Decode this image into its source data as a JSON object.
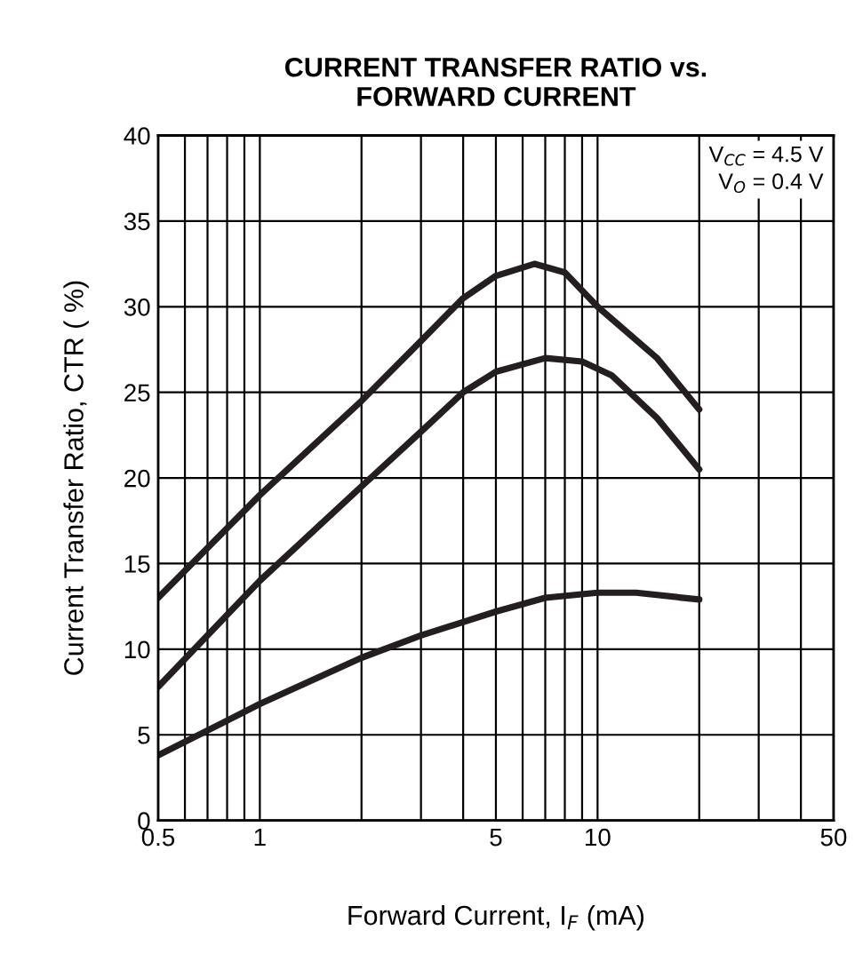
{
  "chart_data": {
    "type": "line",
    "title": "CURRENT TRANSFER RATIO vs.\nFORWARD CURRENT",
    "xlabel": "Forward Current, I$_{F}$ (mA)",
    "ylabel": "Current Transfer Ratio, CTR ( %)",
    "log": "x",
    "xlim": [
      0.5,
      50
    ],
    "ylim": [
      0,
      40
    ],
    "xticks": [
      0.5,
      {
        "value": 0.6,
        "label": null
      },
      {
        "value": 0.7,
        "label": null
      },
      {
        "value": 0.8,
        "label": null
      },
      {
        "value": 0.9,
        "label": null
      },
      1,
      {
        "value": 2,
        "label": null
      },
      {
        "value": 3,
        "label": null
      },
      {
        "value": 4,
        "label": null
      },
      5,
      {
        "value": 6,
        "label": null
      },
      {
        "value": 7,
        "label": null
      },
      {
        "value": 8,
        "label": null
      },
      {
        "value": 9,
        "label": null
      },
      10,
      {
        "value": 20,
        "label": null
      },
      {
        "value": 30,
        "label": null
      },
      {
        "value": 40,
        "label": null
      },
      50
    ],
    "yticks": [
      0,
      5,
      10,
      15,
      20,
      25,
      30,
      35,
      40
    ],
    "grid": true,
    "marker": "none",
    "line_style": "solid",
    "annotations": [
      "V$_{CC}$ = 4.5 V",
      "V$_{O}$ = 0.4 V"
    ],
    "series": [
      {
        "color": "#231f20",
        "x": [
          0.5,
          1,
          2,
          3,
          4,
          5,
          6.5,
          8,
          10,
          15,
          20
        ],
        "values": [
          13,
          19,
          24.5,
          28,
          30.5,
          31.8,
          32.5,
          32,
          30,
          27,
          24
        ]
      },
      {
        "color": "#231f20",
        "x": [
          0.5,
          1,
          2,
          3,
          4,
          5,
          7,
          9,
          11,
          15,
          20
        ],
        "values": [
          7.8,
          14,
          19.5,
          22.7,
          25,
          26.2,
          27,
          26.8,
          26,
          23.5,
          20.5
        ]
      },
      {
        "color": "#231f20",
        "x": [
          0.5,
          1,
          2,
          3,
          5,
          7,
          10,
          13,
          20
        ],
        "values": [
          3.8,
          6.8,
          9.5,
          10.8,
          12.2,
          13,
          13.3,
          13.3,
          12.9
        ]
      }
    ]
  }
}
